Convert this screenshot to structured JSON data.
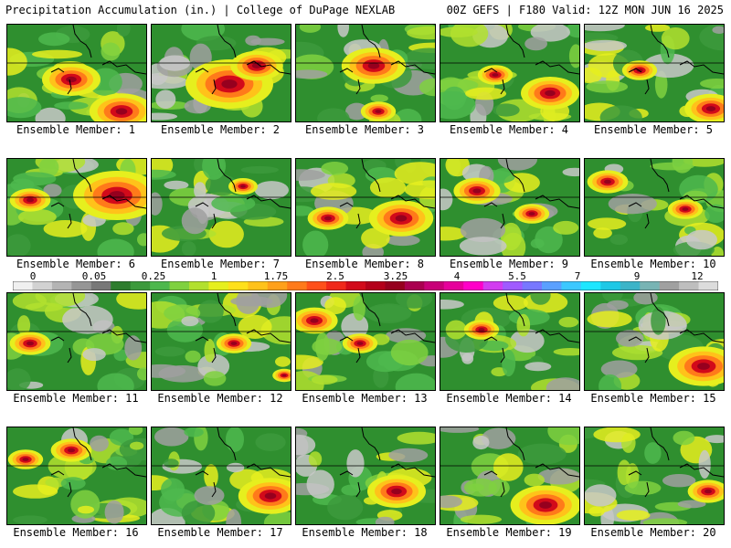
{
  "header": {
    "title_left": "Precipitation Accumulation (in.) | College of DuPage NEXLAB",
    "title_right": "00Z GEFS | F180 Valid: 12Z MON JUN 16 2025"
  },
  "panels": [
    {
      "label": "Ensemble Member: 1",
      "heavy": [
        [
          70,
          60,
          20
        ],
        [
          125,
          95,
          22
        ]
      ]
    },
    {
      "label": "Ensemble Member: 2",
      "heavy": [
        [
          85,
          65,
          30
        ],
        [
          115,
          45,
          18
        ]
      ]
    },
    {
      "label": "Ensemble Member: 3",
      "heavy": [
        [
          85,
          45,
          22
        ],
        [
          90,
          95,
          12
        ]
      ]
    },
    {
      "label": "Ensemble Member: 4",
      "heavy": [
        [
          120,
          75,
          20
        ],
        [
          60,
          55,
          12
        ]
      ]
    },
    {
      "label": "Ensemble Member: 5",
      "heavy": [
        [
          138,
          92,
          18
        ],
        [
          60,
          50,
          12
        ]
      ]
    },
    {
      "label": "Ensemble Member: 6",
      "heavy": [
        [
          120,
          40,
          30
        ],
        [
          25,
          45,
          14
        ]
      ]
    },
    {
      "label": "Ensemble Member: 7",
      "heavy": [
        [
          100,
          30,
          10
        ]
      ]
    },
    {
      "label": "Ensemble Member: 8",
      "heavy": [
        [
          115,
          65,
          22
        ],
        [
          35,
          65,
          14
        ]
      ]
    },
    {
      "label": "Ensemble Member: 9",
      "heavy": [
        [
          40,
          35,
          16
        ],
        [
          100,
          60,
          12
        ]
      ]
    },
    {
      "label": "Ensemble Member: 10",
      "heavy": [
        [
          25,
          25,
          14
        ],
        [
          110,
          55,
          12
        ]
      ]
    },
    {
      "label": "Ensemble Member: 11",
      "heavy": [
        [
          25,
          55,
          14
        ]
      ]
    },
    {
      "label": "Ensemble Member: 12",
      "heavy": [
        [
          145,
          90,
          8
        ],
        [
          90,
          55,
          12
        ]
      ]
    },
    {
      "label": "Ensemble Member: 13",
      "heavy": [
        [
          20,
          30,
          16
        ],
        [
          70,
          55,
          12
        ]
      ]
    },
    {
      "label": "Ensemble Member: 14",
      "heavy": [
        [
          45,
          40,
          12
        ]
      ]
    },
    {
      "label": "Ensemble Member: 15",
      "heavy": [
        [
          130,
          80,
          24
        ]
      ]
    },
    {
      "label": "Ensemble Member: 16",
      "heavy": [
        [
          70,
          25,
          14
        ],
        [
          20,
          35,
          12
        ]
      ]
    },
    {
      "label": "Ensemble Member: 17",
      "heavy": [
        [
          130,
          75,
          22
        ]
      ]
    },
    {
      "label": "Ensemble Member: 18",
      "heavy": [
        [
          110,
          70,
          20
        ]
      ]
    },
    {
      "label": "Ensemble Member: 19",
      "heavy": [
        [
          115,
          85,
          24
        ]
      ]
    },
    {
      "label": "Ensemble Member: 20",
      "heavy": [
        [
          135,
          70,
          14
        ]
      ]
    }
  ],
  "colorbar": {
    "labels": [
      "0",
      "0.05",
      "0.25",
      "1",
      "1.75",
      "2.5",
      "3.25",
      "4",
      "5.5",
      "7",
      "9",
      "12"
    ],
    "colors": [
      "#f0f0f0",
      "#d2d2d2",
      "#b4b4b4",
      "#969696",
      "#787878",
      "#2e7d2e",
      "#3c9a3c",
      "#4db84d",
      "#7fd13f",
      "#b2e02e",
      "#e6ef1e",
      "#ffe01a",
      "#ffc21a",
      "#ffa01a",
      "#ff7a1a",
      "#ff501a",
      "#f0281a",
      "#d20a1a",
      "#b4001a",
      "#96001e",
      "#aa0050",
      "#c80078",
      "#e6009b",
      "#ff00c8",
      "#d23cf0",
      "#a05aff",
      "#7878ff",
      "#5aa0ff",
      "#3cc8ff",
      "#1ee6ff",
      "#1ec8e6",
      "#3cb4c8",
      "#78b4b4",
      "#a0a0a0",
      "#bebebe",
      "#dcdcdc"
    ]
  }
}
